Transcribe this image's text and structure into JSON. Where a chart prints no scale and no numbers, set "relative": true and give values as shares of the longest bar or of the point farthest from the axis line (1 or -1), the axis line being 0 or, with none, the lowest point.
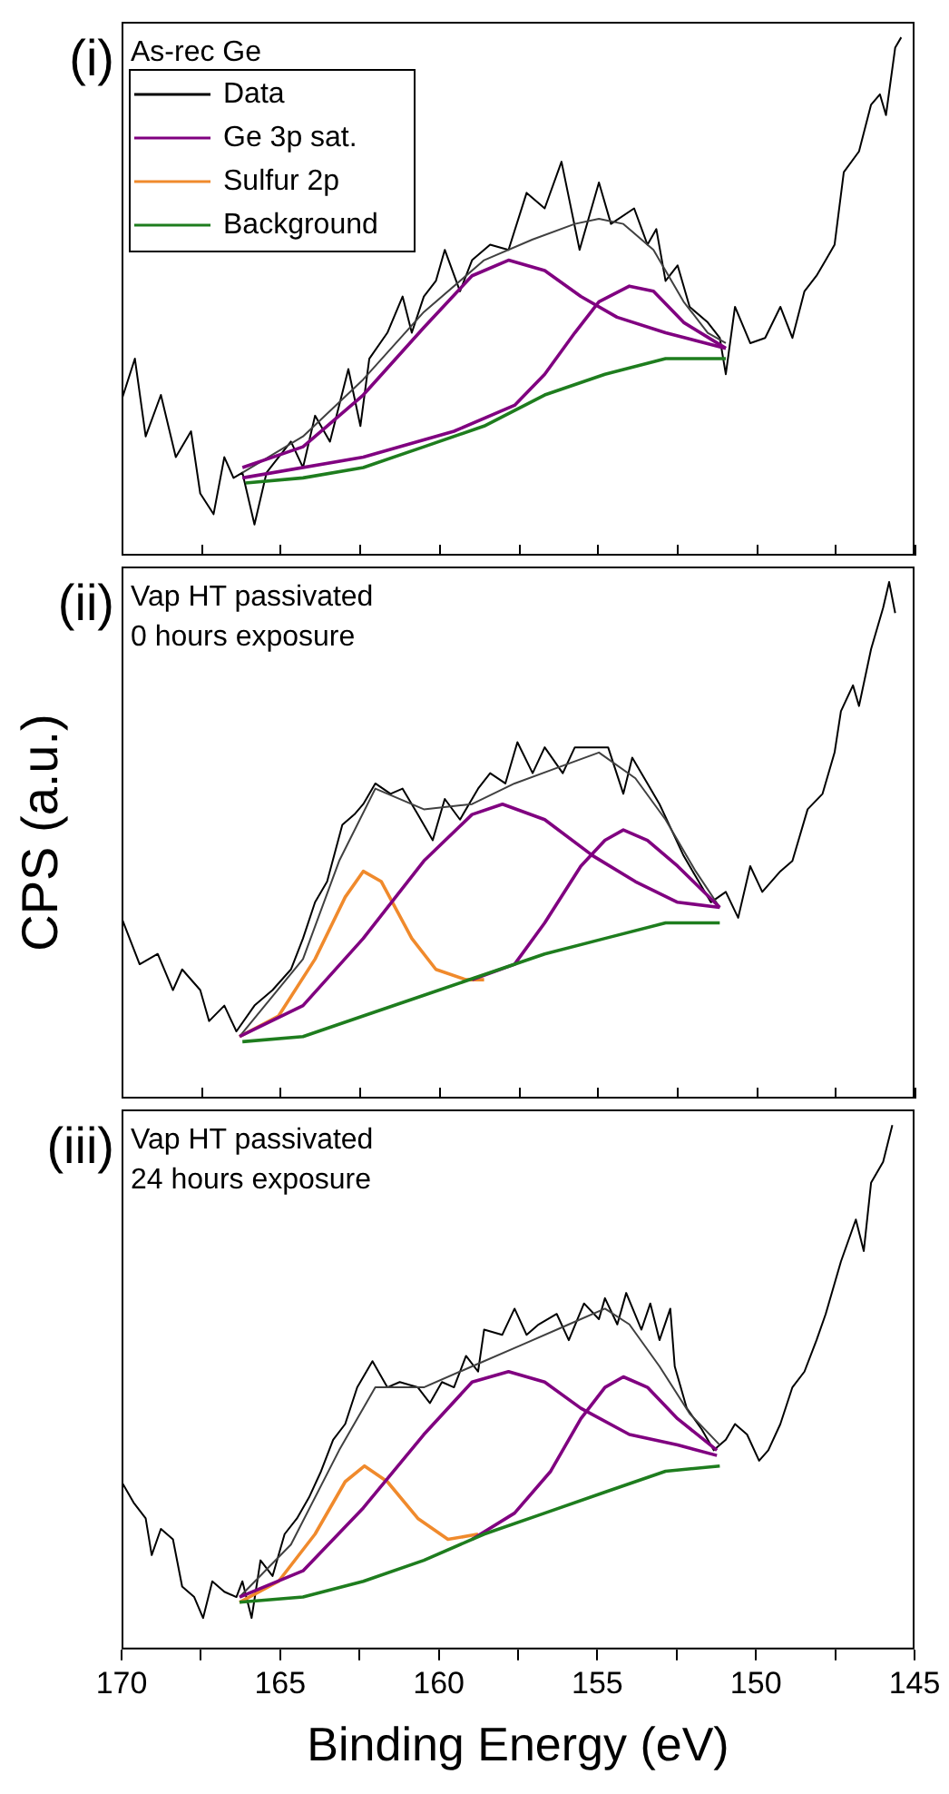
{
  "chart_data": [
    {
      "type": "line",
      "title": "(i)",
      "annotations": [
        "As-rec Ge"
      ],
      "relative": true,
      "xlim": [
        170,
        145
      ],
      "xticks": [
        170,
        {
          "value": 167.5,
          "label": null
        },
        165,
        {
          "value": 162.5,
          "label": null
        },
        160,
        {
          "value": 157.5,
          "label": null
        },
        155,
        {
          "value": 152.5,
          "label": null
        },
        150,
        {
          "value": 147.5,
          "label": null
        },
        145
      ],
      "tick_labels": false,
      "legend": "top left",
      "marker": "none",
      "line_style": "solid",
      "series": [
        {
          "name": "Data",
          "color": "#000000",
          "x": [
            170.0,
            169.58,
            169.24,
            168.76,
            168.29,
            167.81,
            167.52,
            167.1,
            166.76,
            166.47,
            166.19,
            165.81,
            165.43,
            165.05,
            164.66,
            164.28,
            163.9,
            163.43,
            163.14,
            162.85,
            162.47,
            162.19,
            161.62,
            161.14,
            160.85,
            160.47,
            160.09,
            159.81,
            159.33,
            158.95,
            158.38,
            157.8,
            157.23,
            156.66,
            156.13,
            155.56,
            154.95,
            154.57,
            153.84,
            153.42,
            153.14,
            152.85,
            152.47,
            152.09,
            151.52,
            151.14,
            150.95,
            150.66,
            150.18,
            149.71,
            149.23,
            148.85,
            148.47,
            148.09,
            147.8,
            147.52,
            147.23,
            146.75,
            146.37,
            146.09,
            145.9,
            145.61,
            145.42
          ],
          "values": [
            0.3,
            0.38,
            0.23,
            0.31,
            0.19,
            0.24,
            0.12,
            0.08,
            0.19,
            0.15,
            0.16,
            0.06,
            0.16,
            0.19,
            0.22,
            0.17,
            0.27,
            0.22,
            0.29,
            0.36,
            0.25,
            0.38,
            0.43,
            0.5,
            0.43,
            0.5,
            0.53,
            0.59,
            0.51,
            0.57,
            0.6,
            0.59,
            0.7,
            0.67,
            0.76,
            0.59,
            0.72,
            0.64,
            0.67,
            0.6,
            0.63,
            0.53,
            0.56,
            0.48,
            0.45,
            0.42,
            0.35,
            0.48,
            0.41,
            0.42,
            0.48,
            0.42,
            0.51,
            0.54,
            0.57,
            0.6,
            0.74,
            0.78,
            0.87,
            0.89,
            0.85,
            0.98,
            1.0
          ]
        },
        {
          "color": "#404040",
          "x": [
            166.19,
            164.28,
            162.38,
            160.47,
            158.57,
            157.04,
            155.71,
            154.95,
            154.18,
            153.23,
            152.28,
            151.52,
            150.95
          ],
          "values": [
            0.16,
            0.23,
            0.34,
            0.47,
            0.57,
            0.61,
            0.64,
            0.65,
            0.64,
            0.59,
            0.49,
            0.43,
            0.41
          ]
        },
        {
          "name": "Ge 3p sat.",
          "color": "#800080",
          "x": [
            166.19,
            164.28,
            162.38,
            160.47,
            158.95,
            157.8,
            156.66,
            155.52,
            154.38,
            152.85,
            150.95
          ],
          "values": [
            0.17,
            0.21,
            0.31,
            0.44,
            0.54,
            0.57,
            0.55,
            0.5,
            0.46,
            0.43,
            0.4
          ]
        },
        {
          "color": "#800080",
          "x": [
            166.19,
            162.38,
            159.52,
            157.61,
            156.66,
            155.71,
            154.95,
            153.99,
            153.23,
            152.28,
            150.95
          ],
          "values": [
            0.15,
            0.19,
            0.24,
            0.29,
            0.35,
            0.43,
            0.49,
            0.52,
            0.51,
            0.45,
            0.4
          ]
        },
        {
          "name": "Sulfur 2p",
          "color": "#f08a2c"
        },
        {
          "name": "Background",
          "color": "#1e7d1e",
          "x": [
            166.09,
            164.28,
            162.38,
            160.47,
            158.57,
            156.66,
            154.76,
            152.85,
            150.95
          ],
          "values": [
            0.14,
            0.15,
            0.17,
            0.21,
            0.25,
            0.31,
            0.35,
            0.38,
            0.38
          ]
        }
      ]
    },
    {
      "type": "line",
      "title": "(ii)",
      "ylabel": "CPS (a.u.)",
      "annotations": [
        "Vap HT passivated",
        "0 hours exposure"
      ],
      "relative": true,
      "xlim": [
        170,
        145
      ],
      "xticks": [
        170,
        {
          "value": 167.5,
          "label": null
        },
        165,
        {
          "value": 162.5,
          "label": null
        },
        160,
        {
          "value": 157.5,
          "label": null
        },
        155,
        {
          "value": 152.5,
          "label": null
        },
        150,
        {
          "value": 147.5,
          "label": null
        },
        145
      ],
      "tick_labels": false,
      "marker": "none",
      "line_style": "solid",
      "series": [
        {
          "color": "#000000",
          "x": [
            170.0,
            169.43,
            168.86,
            168.38,
            168.09,
            167.52,
            167.24,
            166.76,
            166.38,
            165.81,
            165.24,
            164.66,
            164.28,
            163.9,
            163.52,
            163.04,
            162.66,
            162.38,
            162.0,
            161.52,
            161.14,
            160.66,
            160.19,
            159.81,
            159.33,
            158.76,
            158.38,
            157.9,
            157.52,
            157.04,
            156.66,
            156.09,
            155.71,
            155.23,
            154.66,
            154.18,
            153.9,
            153.42,
            153.04,
            152.66,
            152.28,
            151.9,
            151.42,
            150.95,
            150.56,
            150.18,
            149.8,
            149.23,
            148.85,
            148.37,
            147.9,
            147.52,
            147.32,
            146.94,
            146.75,
            146.37,
            145.99,
            145.8,
            145.61
          ],
          "values": [
            0.35,
            0.26,
            0.28,
            0.21,
            0.25,
            0.21,
            0.15,
            0.18,
            0.13,
            0.18,
            0.21,
            0.25,
            0.31,
            0.38,
            0.42,
            0.53,
            0.55,
            0.57,
            0.61,
            0.59,
            0.6,
            0.55,
            0.5,
            0.58,
            0.54,
            0.6,
            0.63,
            0.61,
            0.69,
            0.63,
            0.68,
            0.63,
            0.68,
            0.68,
            0.68,
            0.59,
            0.66,
            0.61,
            0.57,
            0.52,
            0.47,
            0.43,
            0.38,
            0.4,
            0.35,
            0.45,
            0.4,
            0.44,
            0.46,
            0.56,
            0.59,
            0.67,
            0.75,
            0.8,
            0.76,
            0.87,
            0.95,
            1.0,
            0.94
          ]
        },
        {
          "color": "#404040",
          "x": [
            166.28,
            164.28,
            163.14,
            162.0,
            160.47,
            158.95,
            157.61,
            156.28,
            154.95,
            153.8,
            152.85,
            151.9,
            151.14
          ],
          "values": [
            0.12,
            0.27,
            0.46,
            0.6,
            0.56,
            0.57,
            0.61,
            0.64,
            0.67,
            0.62,
            0.54,
            0.44,
            0.37
          ]
        },
        {
          "color": "#f08a2c",
          "x": [
            166.28,
            165.05,
            163.9,
            162.95,
            162.38,
            161.81,
            160.85,
            160.09,
            159.14,
            158.57
          ],
          "values": [
            0.12,
            0.16,
            0.27,
            0.39,
            0.44,
            0.42,
            0.31,
            0.25,
            0.23,
            0.23
          ]
        },
        {
          "color": "#800080",
          "x": [
            166.28,
            164.28,
            162.38,
            160.47,
            158.95,
            157.99,
            156.66,
            155.14,
            153.8,
            152.47,
            151.14
          ],
          "values": [
            0.12,
            0.18,
            0.31,
            0.46,
            0.55,
            0.57,
            0.54,
            0.47,
            0.42,
            0.38,
            0.37
          ]
        },
        {
          "color": "#800080",
          "x": [
            158.95,
            157.61,
            156.66,
            155.52,
            154.76,
            154.18,
            153.42,
            152.47,
            151.14
          ],
          "values": [
            0.23,
            0.26,
            0.34,
            0.45,
            0.5,
            0.52,
            0.5,
            0.45,
            0.37
          ]
        },
        {
          "color": "#1e7d1e",
          "x": [
            166.19,
            164.28,
            162.38,
            160.47,
            158.57,
            156.66,
            154.76,
            152.85,
            151.14
          ],
          "values": [
            0.11,
            0.12,
            0.16,
            0.2,
            0.24,
            0.28,
            0.31,
            0.34,
            0.34
          ]
        }
      ]
    },
    {
      "type": "line",
      "title": "(iii)",
      "xlabel": "Binding Energy (eV)",
      "annotations": [
        "Vap HT passivated",
        "24 hours exposure"
      ],
      "relative": true,
      "xlim": [
        170,
        145
      ],
      "xticks": [
        170,
        {
          "value": 167.5,
          "label": null
        },
        165,
        {
          "value": 162.5,
          "label": null
        },
        160,
        {
          "value": 157.5,
          "label": null
        },
        155,
        {
          "value": 152.5,
          "label": null
        },
        150,
        {
          "value": 147.5,
          "label": null
        },
        145
      ],
      "tick_labels": "x",
      "marker": "none",
      "line_style": "solid",
      "series": [
        {
          "color": "#000000",
          "x": [
            170.0,
            169.62,
            169.24,
            169.05,
            168.76,
            168.38,
            168.09,
            167.71,
            167.43,
            167.14,
            166.76,
            166.38,
            166.19,
            165.9,
            165.62,
            165.24,
            164.86,
            164.47,
            164.09,
            163.71,
            163.33,
            162.95,
            162.57,
            162.09,
            161.62,
            161.23,
            160.66,
            160.28,
            159.9,
            159.52,
            159.14,
            158.76,
            158.57,
            158.0,
            157.61,
            157.23,
            156.85,
            156.28,
            155.9,
            155.42,
            154.95,
            154.76,
            154.37,
            154.09,
            153.61,
            153.33,
            153.04,
            152.7,
            152.56,
            152.18,
            151.71,
            151.33,
            150.95,
            150.66,
            150.28,
            149.9,
            149.61,
            149.23,
            148.85,
            148.47,
            148.09,
            147.8,
            147.32,
            146.85,
            146.6,
            146.37,
            145.99,
            145.7
          ],
          "values": [
            0.32,
            0.28,
            0.25,
            0.18,
            0.23,
            0.21,
            0.12,
            0.1,
            0.06,
            0.13,
            0.11,
            0.1,
            0.13,
            0.06,
            0.17,
            0.14,
            0.22,
            0.25,
            0.29,
            0.34,
            0.4,
            0.43,
            0.5,
            0.55,
            0.5,
            0.51,
            0.5,
            0.47,
            0.51,
            0.5,
            0.56,
            0.53,
            0.61,
            0.6,
            0.65,
            0.6,
            0.62,
            0.64,
            0.59,
            0.66,
            0.63,
            0.67,
            0.62,
            0.68,
            0.61,
            0.66,
            0.59,
            0.65,
            0.54,
            0.46,
            0.42,
            0.38,
            0.4,
            0.43,
            0.41,
            0.36,
            0.38,
            0.43,
            0.5,
            0.53,
            0.59,
            0.64,
            0.74,
            0.82,
            0.76,
            0.89,
            0.93,
            1.0
          ]
        },
        {
          "color": "#404040",
          "x": [
            166.28,
            164.66,
            163.14,
            162.0,
            160.47,
            158.95,
            157.42,
            155.9,
            154.76,
            153.99,
            153.04,
            152.09,
            151.14
          ],
          "values": [
            0.1,
            0.2,
            0.38,
            0.5,
            0.5,
            0.54,
            0.58,
            0.62,
            0.65,
            0.62,
            0.54,
            0.45,
            0.39
          ]
        },
        {
          "color": "#f08a2c",
          "x": [
            166.28,
            165.05,
            163.9,
            162.95,
            162.34,
            161.62,
            160.66,
            159.71,
            158.76
          ],
          "values": [
            0.09,
            0.13,
            0.22,
            0.32,
            0.35,
            0.32,
            0.25,
            0.21,
            0.22
          ]
        },
        {
          "color": "#800080",
          "x": [
            166.28,
            164.28,
            162.38,
            160.47,
            158.95,
            157.8,
            156.66,
            155.52,
            153.99,
            152.47,
            151.23
          ],
          "values": [
            0.1,
            0.15,
            0.27,
            0.41,
            0.51,
            0.53,
            0.51,
            0.46,
            0.41,
            0.39,
            0.37
          ]
        },
        {
          "color": "#800080",
          "x": [
            158.95,
            157.61,
            156.47,
            155.52,
            154.76,
            154.18,
            153.42,
            152.47,
            151.23
          ],
          "values": [
            0.21,
            0.26,
            0.34,
            0.44,
            0.5,
            0.52,
            0.5,
            0.44,
            0.38
          ]
        },
        {
          "color": "#1e7d1e",
          "x": [
            166.28,
            164.28,
            162.38,
            160.47,
            158.57,
            156.66,
            154.76,
            152.85,
            151.14
          ],
          "values": [
            0.09,
            0.1,
            0.13,
            0.17,
            0.22,
            0.26,
            0.3,
            0.34,
            0.35
          ]
        }
      ]
    }
  ]
}
